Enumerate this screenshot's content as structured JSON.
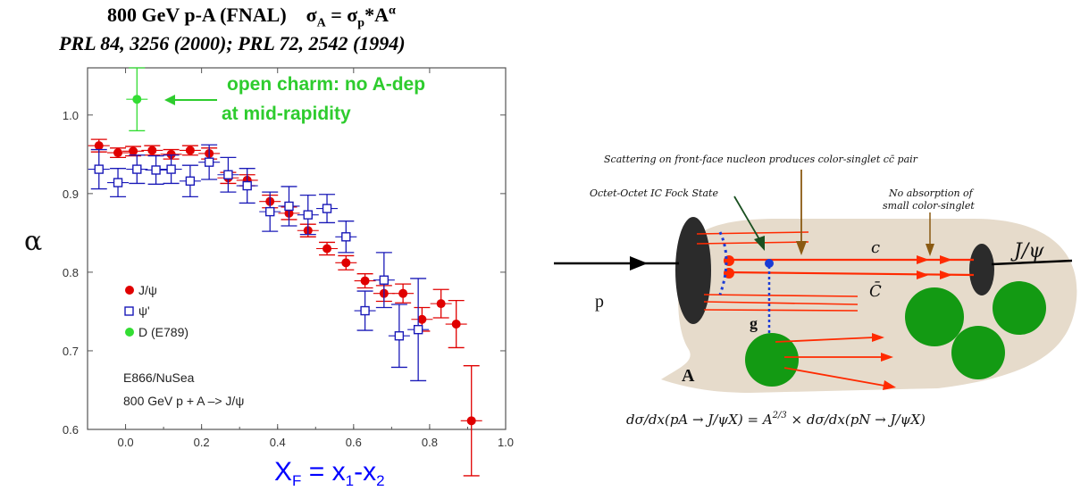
{
  "header": {
    "title_main": "800 GeV p-A (FNAL)",
    "title_formula_a": "σ",
    "title_formula_sub_a": "A",
    "title_formula_eq": " = σ",
    "title_formula_sub_p": "p",
    "title_formula_star": "*A",
    "title_formula_sup": "α",
    "reference": "PRL 84, 3256 (2000); PRL 72, 2542 (1994)"
  },
  "colors": {
    "jpsi": "#e00000",
    "psiprime": "#1a1ab8",
    "dmeson": "#33dd33",
    "annotation": "#2ecc2e",
    "xf_label": "#0000ff"
  },
  "annotation": {
    "line1": "open charm: no A-dep",
    "line2": "at mid-rapidity"
  },
  "experiment_note": {
    "line1": "E866/NuSea",
    "line2": "800 GeV p + A –> J/ψ"
  },
  "chart_data": {
    "type": "scatter",
    "xlabel": "X",
    "xlabel_sub": "F",
    "xlabel_eq": " = x",
    "xlabel_sub1": "1",
    "xlabel_dash": "-x",
    "xlabel_sub2": "2",
    "ylabel": "α",
    "xlim": [
      -0.1,
      1.0
    ],
    "ylim": [
      0.6,
      1.06
    ],
    "x_ticks": [
      "0.0",
      "0.2",
      "0.4",
      "0.6",
      "0.8",
      "1.0"
    ],
    "x_tick_values": [
      0.0,
      0.2,
      0.4,
      0.6,
      0.8,
      1.0
    ],
    "y_ticks": [
      "0.6",
      "0.7",
      "0.8",
      "0.9",
      "1.0"
    ],
    "y_tick_values": [
      0.6,
      0.7,
      0.8,
      0.9,
      1.0
    ],
    "legend_position": "left-middle",
    "series": [
      {
        "name": "J/ψ",
        "marker": "filled-circle",
        "points": [
          {
            "x": -0.07,
            "y": 0.961,
            "err": 0.008
          },
          {
            "x": -0.02,
            "y": 0.952,
            "err": 0.006
          },
          {
            "x": 0.02,
            "y": 0.954,
            "err": 0.006
          },
          {
            "x": 0.07,
            "y": 0.955,
            "err": 0.006
          },
          {
            "x": 0.12,
            "y": 0.95,
            "err": 0.006
          },
          {
            "x": 0.17,
            "y": 0.955,
            "err": 0.006
          },
          {
            "x": 0.22,
            "y": 0.951,
            "err": 0.007
          },
          {
            "x": 0.27,
            "y": 0.92,
            "err": 0.007
          },
          {
            "x": 0.32,
            "y": 0.917,
            "err": 0.007
          },
          {
            "x": 0.38,
            "y": 0.89,
            "err": 0.008
          },
          {
            "x": 0.43,
            "y": 0.875,
            "err": 0.008
          },
          {
            "x": 0.48,
            "y": 0.853,
            "err": 0.008
          },
          {
            "x": 0.53,
            "y": 0.83,
            "err": 0.008
          },
          {
            "x": 0.58,
            "y": 0.812,
            "err": 0.009
          },
          {
            "x": 0.63,
            "y": 0.789,
            "err": 0.009
          },
          {
            "x": 0.68,
            "y": 0.773,
            "err": 0.01
          },
          {
            "x": 0.73,
            "y": 0.773,
            "err": 0.012
          },
          {
            "x": 0.78,
            "y": 0.74,
            "err": 0.015
          },
          {
            "x": 0.83,
            "y": 0.76,
            "err": 0.018
          },
          {
            "x": 0.87,
            "y": 0.734,
            "err": 0.03
          },
          {
            "x": 0.91,
            "y": 0.611,
            "err": 0.07
          }
        ]
      },
      {
        "name": "ψ'",
        "marker": "open-square",
        "points": [
          {
            "x": -0.07,
            "y": 0.931,
            "err": 0.025
          },
          {
            "x": -0.02,
            "y": 0.914,
            "err": 0.018
          },
          {
            "x": 0.03,
            "y": 0.931,
            "err": 0.018
          },
          {
            "x": 0.08,
            "y": 0.93,
            "err": 0.018
          },
          {
            "x": 0.12,
            "y": 0.931,
            "err": 0.018
          },
          {
            "x": 0.17,
            "y": 0.916,
            "err": 0.02
          },
          {
            "x": 0.22,
            "y": 0.94,
            "err": 0.022
          },
          {
            "x": 0.27,
            "y": 0.924,
            "err": 0.022
          },
          {
            "x": 0.32,
            "y": 0.91,
            "err": 0.022
          },
          {
            "x": 0.38,
            "y": 0.877,
            "err": 0.025
          },
          {
            "x": 0.43,
            "y": 0.884,
            "err": 0.025
          },
          {
            "x": 0.48,
            "y": 0.873,
            "err": 0.025
          },
          {
            "x": 0.53,
            "y": 0.881,
            "err": 0.018
          },
          {
            "x": 0.58,
            "y": 0.845,
            "err": 0.02
          },
          {
            "x": 0.63,
            "y": 0.751,
            "err": 0.025
          },
          {
            "x": 0.68,
            "y": 0.79,
            "err": 0.035
          },
          {
            "x": 0.72,
            "y": 0.719,
            "err": 0.04
          },
          {
            "x": 0.77,
            "y": 0.727,
            "err": 0.065
          }
        ]
      },
      {
        "name": "D (E789)",
        "marker": "filled-circle",
        "points": [
          {
            "x": 0.03,
            "y": 1.02,
            "err": 0.04
          }
        ]
      }
    ]
  },
  "diagram": {
    "top_caption_prefix": "Scattering on front-face nucleon produces color-singlet ",
    "top_caption_cc": "cc̄",
    "top_caption_suffix": " pair",
    "fock_label": "Octet-Octet IC Fock State",
    "absorption_line1": "No absorption of",
    "absorption_line2": "small color-singlet",
    "jpsi_label": "J/ψ",
    "c_label": "c",
    "cbar_label": "C̄",
    "p_label": "p",
    "g_label": "g",
    "A_label": "A",
    "formula_lhs": "dσ/dx",
    "formula_text": "(pA → J/ψX) = A",
    "formula_exp": "2/3",
    "formula_mid": " × ",
    "formula_rhs": "(pN → J/ψX)"
  }
}
